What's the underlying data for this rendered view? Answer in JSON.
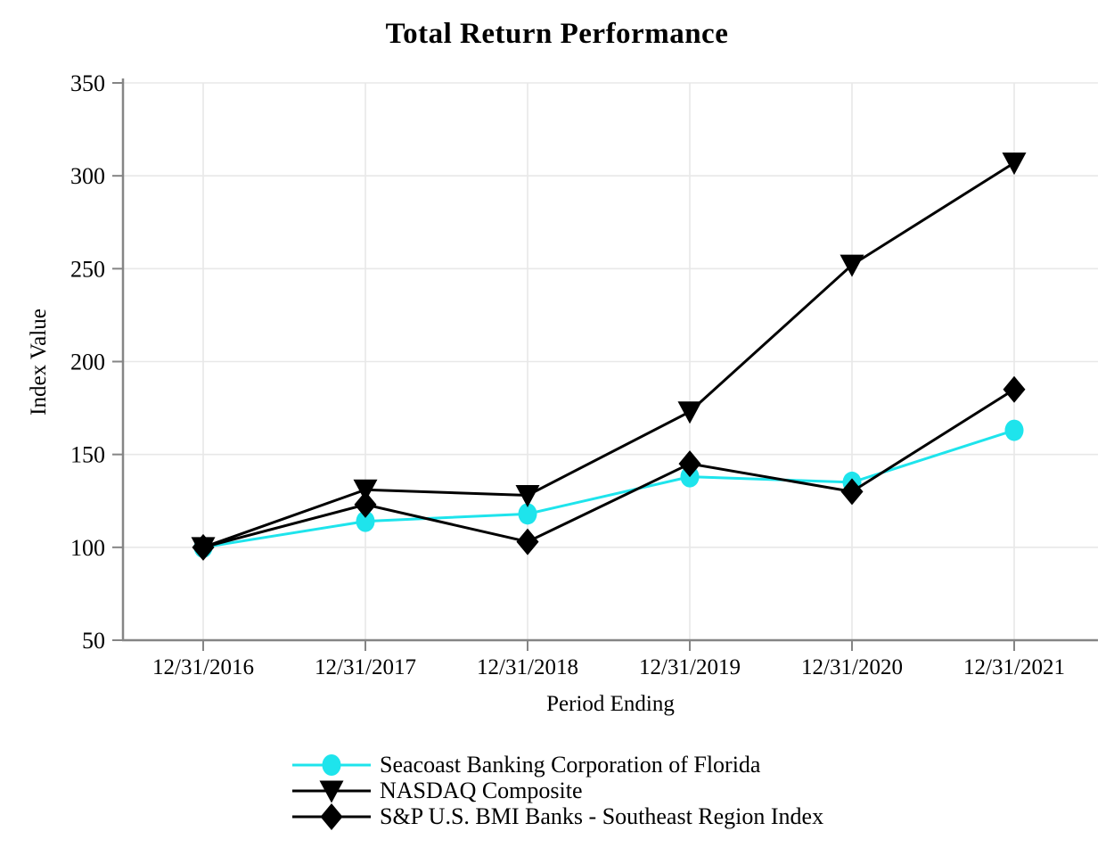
{
  "chart_data": {
    "type": "line",
    "title": "Total Return Performance",
    "xlabel": "Period Ending",
    "ylabel": "Index Value",
    "categories": [
      "12/31/2016",
      "12/31/2017",
      "12/31/2018",
      "12/31/2019",
      "12/31/2020",
      "12/31/2021"
    ],
    "series": [
      {
        "name": "Seacoast Banking Corporation of Florida",
        "marker": "circle",
        "color": "#1EE4EC",
        "values": [
          100,
          114,
          118,
          138,
          135,
          163
        ]
      },
      {
        "name": "NASDAQ Composite",
        "marker": "triangle-down",
        "color": "#000000",
        "values": [
          100,
          131,
          128,
          173,
          252,
          307
        ]
      },
      {
        "name": "S&P U.S. BMI Banks - Southeast Region Index",
        "marker": "diamond",
        "color": "#000000",
        "values": [
          100,
          123,
          103,
          145,
          130,
          185
        ]
      }
    ],
    "ylim": [
      50,
      350
    ],
    "yticks": [
      50,
      100,
      150,
      200,
      250,
      300,
      350
    ],
    "grid": true,
    "legend_position": "bottom-left"
  },
  "colors": {
    "axis": "#858585",
    "grid": "#e8e8e8",
    "background": "#ffffff",
    "accent_cyan": "#1EE4EC",
    "series_black": "#000000"
  }
}
